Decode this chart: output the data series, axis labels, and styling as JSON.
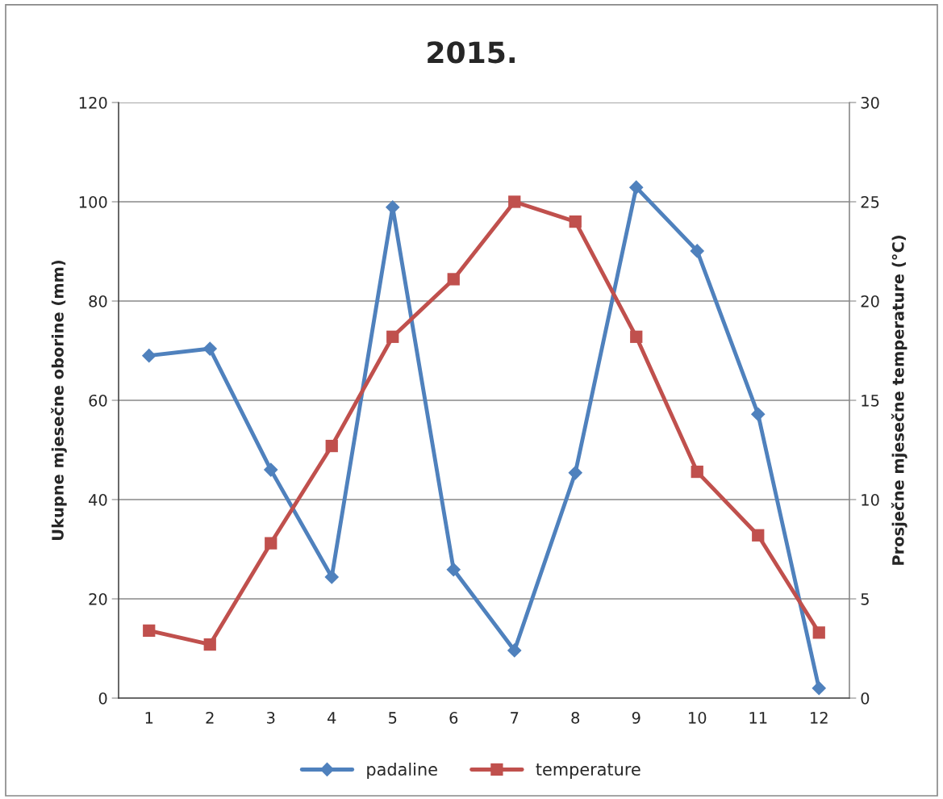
{
  "chart_data": {
    "type": "line",
    "title": "2015.",
    "ylabel": "Ukupne mjesečne oborine (mm)",
    "y2label": "Prosječne mjesečne temperature (°C)",
    "categories": [
      "1",
      "2",
      "3",
      "4",
      "5",
      "6",
      "7",
      "8",
      "9",
      "10",
      "11",
      "12"
    ],
    "series": [
      {
        "name": "padaline",
        "color": "#4f81bd",
        "marker": "diamond",
        "values": [
          69,
          70.4,
          46,
          24.4,
          98.9,
          25.9,
          9.6,
          45.4,
          102.9,
          90.1,
          57.2,
          2
        ]
      },
      {
        "name": "temperature",
        "color": "#c0504d",
        "marker": "square",
        "axis": "y2",
        "values": [
          3.4,
          2.7,
          7.8,
          12.7,
          18.2,
          21.1,
          25.0,
          24.0,
          18.2,
          11.4,
          8.2,
          3.3
        ]
      }
    ],
    "ylim": [
      0,
      120
    ],
    "yticks": [
      0,
      20,
      40,
      60,
      80,
      100,
      120
    ],
    "y2lim": [
      0,
      30
    ],
    "y2ticks": [
      0,
      5,
      10,
      15,
      20,
      25,
      30
    ],
    "grid": "y",
    "legend": "bottom",
    "line_style": "solid"
  }
}
